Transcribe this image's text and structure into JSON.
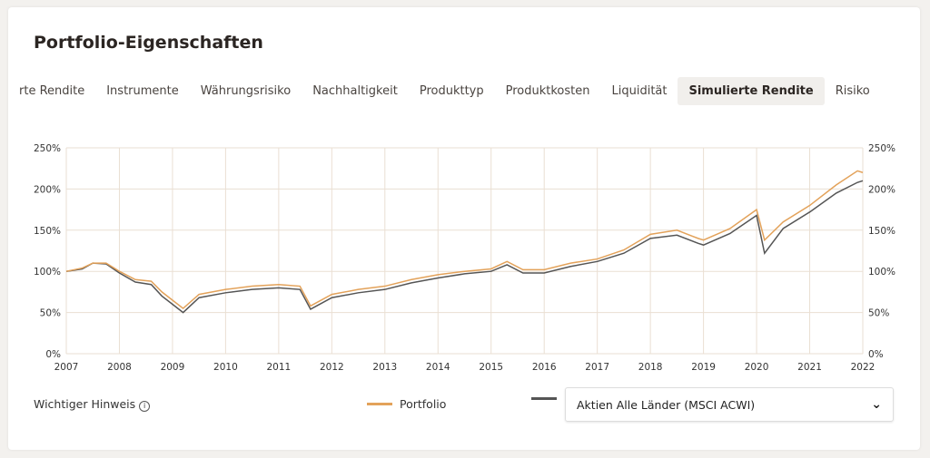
{
  "header": {
    "title": "Portfolio-Eigenschaften"
  },
  "tabs": [
    "rte Rendite",
    "Instrumente",
    "Währungsrisiko",
    "Nachhaltigkeit",
    "Produkttyp",
    "Produktkosten",
    "Liquidität",
    "Simulierte Rendite",
    "Risiko"
  ],
  "active_tab": 7,
  "footer": {
    "hint": "Wichtiger Hinweis",
    "hint_icon": "info-icon",
    "benchmark_select": "Aktien Alle Länder (MSCI ACWI)",
    "select_icon": "chevron-down-icon"
  },
  "colors": {
    "portfolio": "#e3a25a",
    "benchmark": "#555555",
    "grid": "#eadfd3"
  },
  "chart_data": {
    "type": "line",
    "xlim": [
      2007,
      2022
    ],
    "ylim": [
      0,
      250
    ],
    "x_ticks": [
      "2007",
      "2008",
      "2009",
      "2010",
      "2011",
      "2012",
      "2013",
      "2014",
      "2015",
      "2016",
      "2017",
      "2018",
      "2019",
      "2020",
      "2021",
      "2022"
    ],
    "y_ticks": [
      "0%",
      "50%",
      "100%",
      "150%",
      "200%",
      "250%"
    ],
    "legend": "bottom",
    "series": [
      {
        "name": "Portfolio",
        "x": [
          2007,
          2007.3,
          2007.5,
          2007.75,
          2008,
          2008.3,
          2008.6,
          2008.8,
          2009,
          2009.2,
          2009.5,
          2010,
          2010.5,
          2011,
          2011.4,
          2011.6,
          2012,
          2012.5,
          2013,
          2013.5,
          2014,
          2014.5,
          2015,
          2015.3,
          2015.6,
          2016,
          2016.5,
          2017,
          2017.5,
          2018,
          2018.5,
          2018.9,
          2019,
          2019.5,
          2020,
          2020.15,
          2020.5,
          2021,
          2021.5,
          2021.9,
          2022
        ],
        "values": [
          100,
          104,
          110,
          110,
          100,
          90,
          88,
          75,
          65,
          55,
          72,
          78,
          82,
          84,
          82,
          58,
          72,
          78,
          82,
          90,
          96,
          100,
          103,
          112,
          102,
          102,
          110,
          115,
          126,
          145,
          150,
          140,
          138,
          152,
          175,
          138,
          160,
          180,
          205,
          222,
          220
        ]
      },
      {
        "name": "Aktien Alle Länder (MSCI ACWI)",
        "x": [
          2007,
          2007.3,
          2007.5,
          2007.75,
          2008,
          2008.3,
          2008.6,
          2008.8,
          2009,
          2009.2,
          2009.5,
          2010,
          2010.5,
          2011,
          2011.4,
          2011.6,
          2012,
          2012.5,
          2013,
          2013.5,
          2014,
          2014.5,
          2015,
          2015.3,
          2015.6,
          2016,
          2016.5,
          2017,
          2017.5,
          2018,
          2018.5,
          2018.9,
          2019,
          2019.5,
          2020,
          2020.15,
          2020.5,
          2021,
          2021.5,
          2021.9,
          2022
        ],
        "values": [
          100,
          103,
          110,
          109,
          98,
          87,
          84,
          70,
          60,
          50,
          68,
          74,
          78,
          80,
          78,
          54,
          68,
          74,
          78,
          86,
          92,
          97,
          100,
          108,
          98,
          98,
          106,
          112,
          122,
          140,
          144,
          134,
          132,
          146,
          168,
          122,
          152,
          172,
          195,
          208,
          210
        ]
      }
    ]
  }
}
